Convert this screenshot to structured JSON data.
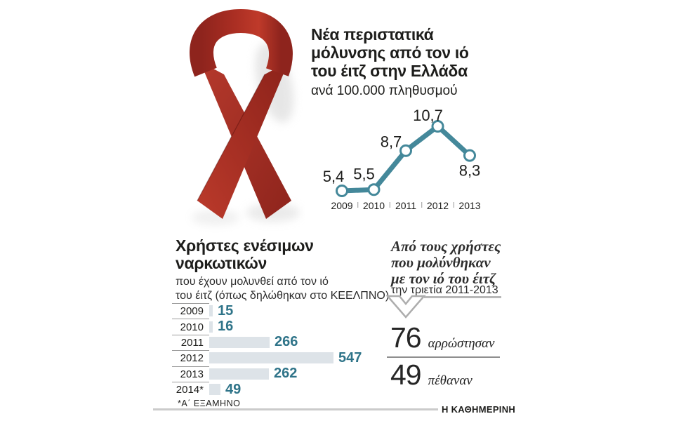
{
  "page": {
    "background": "#ffffff"
  },
  "header": {
    "title_lines": [
      "Νέα περιστατικά",
      "μόλυνσης από τον ιό",
      "του έιτζ στην Ελλάδα"
    ],
    "subtitle": "ανά 100.000 πληθυσμού"
  },
  "ribbon": {
    "label": "red-awareness-ribbon",
    "primary_color": "#a82e23"
  },
  "chart_data": [
    {
      "type": "line",
      "title": "Νέα περιστατικά μόλυνσης από τον ιό του έιτζ στην Ελλάδα",
      "ylabel": "ανά 100.000 πληθυσμού",
      "x": [
        "2009",
        "2010",
        "2011",
        "2012",
        "2013"
      ],
      "values": [
        5.4,
        5.5,
        8.7,
        10.7,
        8.3
      ],
      "value_labels": [
        "5,4",
        "5,5",
        "8,7",
        "10,7",
        "8,3"
      ],
      "ylim": [
        5,
        11
      ],
      "grid": false,
      "legend": "none",
      "line_color": "#44889a",
      "marker": "open-circle"
    },
    {
      "type": "bar",
      "orientation": "horizontal",
      "title": "Χρήστες ενέσιμων ναρκωτικών",
      "title_lines": [
        "Χρήστες ενέσιμων",
        "ναρκωτικών"
      ],
      "subtitle_lines": [
        "που έχουν μολυνθεί από τον ιό",
        "του έιτζ (όπως δηλώθηκαν στο ΚΕΕΛΠΝΟ)"
      ],
      "categories": [
        "2009",
        "2010",
        "2011",
        "2012",
        "2013",
        "2014*"
      ],
      "values": [
        15,
        16,
        266,
        547,
        262,
        49
      ],
      "xmax": 547,
      "footnote": "*Α΄ ΕΞΑΜΗΝΟ",
      "bar_color": "#dde3e8",
      "value_color": "#2f7489"
    }
  ],
  "stats_panel": {
    "heading_lines": [
      "Από τους χρήστες",
      "που μολύνθηκαν",
      "με τον ιό του έιτζ"
    ],
    "period": "την τριετία 2011-2013",
    "stats": [
      {
        "value": "76",
        "label": "αρρώστησαν"
      },
      {
        "value": "49",
        "label": "πέθαναν"
      }
    ]
  },
  "footer": {
    "credit": "Η ΚΑΘΗΜΕΡΙΝΗ"
  }
}
